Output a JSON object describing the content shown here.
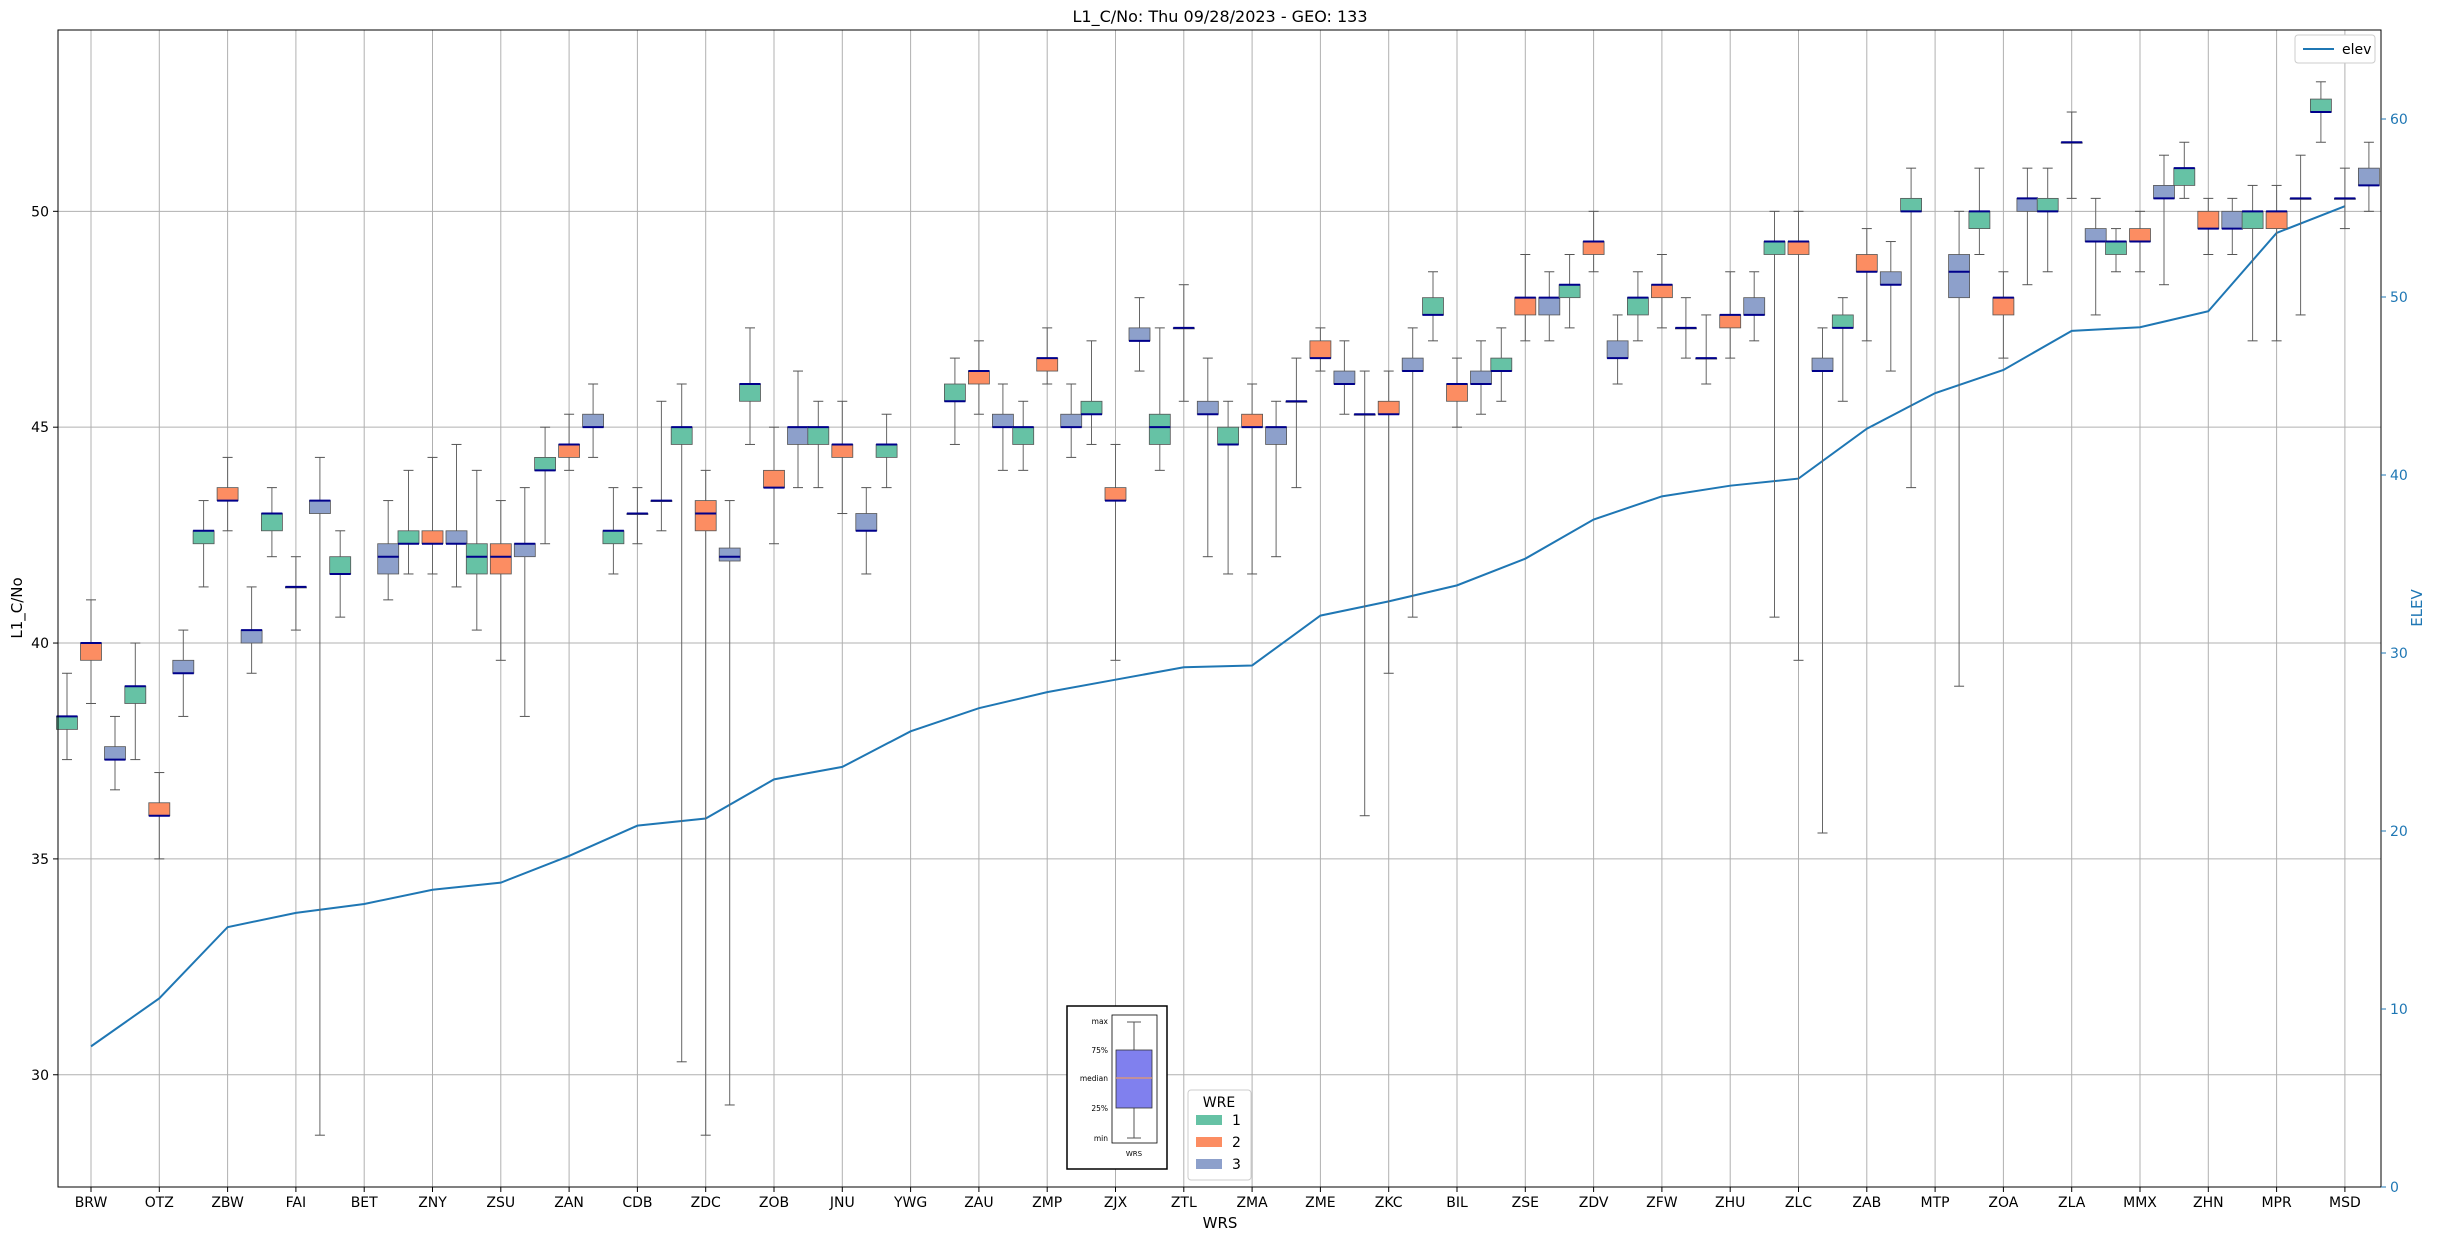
{
  "chart_data": {
    "type": "box",
    "title": "L1_C/No: Thu 09/28/2023 - GEO: 133",
    "xlabel": "WRS",
    "ylabel": "L1_C/No",
    "y2label": "ELEV",
    "ylim": [
      27.4,
      54.2
    ],
    "y2lim": [
      0,
      65
    ],
    "yticks": [
      30,
      35,
      40,
      45,
      50
    ],
    "y2ticks": [
      0,
      10,
      20,
      30,
      40,
      50,
      60
    ],
    "grid": true,
    "categories": [
      "BRW",
      "OTZ",
      "ZBW",
      "FAI",
      "BET",
      "ZNY",
      "ZSU",
      "ZAN",
      "CDB",
      "ZDC",
      "ZOB",
      "JNU",
      "YWG",
      "ZAU",
      "ZMP",
      "ZJX",
      "ZTL",
      "ZMA",
      "ZME",
      "ZKC",
      "BIL",
      "ZSE",
      "ZDV",
      "ZFW",
      "ZHU",
      "ZLC",
      "ZAB",
      "MTP",
      "ZOA",
      "ZLA",
      "MMX",
      "ZHN",
      "MPR",
      "MSD"
    ],
    "wre_colors": {
      "1": "#66c2a5",
      "2": "#fc8d62",
      "3": "#8da0cb"
    },
    "median_color": "#00008b",
    "elev_color": "#1f77b4",
    "legend_elev": "elev",
    "legend_wre_title": "WRE",
    "legend_wre": [
      "1",
      "2",
      "3"
    ],
    "key_labels": {
      "max": "max",
      "p75": "75%",
      "median": "median",
      "p25": "25%",
      "min": "min",
      "xlabel": "WRS"
    },
    "boxes": [
      {
        "cat": "BRW",
        "wre": 1,
        "min": 37.3,
        "q1": 38.0,
        "med": 38.3,
        "q3": 38.3,
        "max": 39.3
      },
      {
        "cat": "BRW",
        "wre": 2,
        "min": 38.6,
        "q1": 39.6,
        "med": 40.0,
        "q3": 40.0,
        "max": 41.0
      },
      {
        "cat": "BRW",
        "wre": 3,
        "min": 36.6,
        "q1": 37.3,
        "med": 37.3,
        "q3": 37.6,
        "max": 38.3
      },
      {
        "cat": "OTZ",
        "wre": 1,
        "min": 37.3,
        "q1": 38.6,
        "med": 39.0,
        "q3": 39.0,
        "max": 40.0
      },
      {
        "cat": "OTZ",
        "wre": 2,
        "min": 35.0,
        "q1": 36.0,
        "med": 36.0,
        "q3": 36.3,
        "max": 37.0
      },
      {
        "cat": "OTZ",
        "wre": 3,
        "min": 38.3,
        "q1": 39.3,
        "med": 39.3,
        "q3": 39.6,
        "max": 40.3
      },
      {
        "cat": "ZBW",
        "wre": 1,
        "min": 41.3,
        "q1": 42.3,
        "med": 42.6,
        "q3": 42.6,
        "max": 43.3
      },
      {
        "cat": "ZBW",
        "wre": 2,
        "min": 42.6,
        "q1": 43.3,
        "med": 43.3,
        "q3": 43.6,
        "max": 44.3
      },
      {
        "cat": "ZBW",
        "wre": 3,
        "min": 39.3,
        "q1": 40.0,
        "med": 40.3,
        "q3": 40.3,
        "max": 41.3
      },
      {
        "cat": "FAI",
        "wre": 1,
        "min": 42.0,
        "q1": 42.6,
        "med": 43.0,
        "q3": 43.0,
        "max": 43.6
      },
      {
        "cat": "FAI",
        "wre": 2,
        "min": 40.3,
        "q1": 41.3,
        "med": 41.3,
        "q3": 41.3,
        "max": 42.0
      },
      {
        "cat": "FAI",
        "wre": 3,
        "min": 28.6,
        "q1": 43.0,
        "med": 43.3,
        "q3": 43.3,
        "max": 44.3
      },
      {
        "cat": "BET",
        "wre": 1,
        "min": 40.6,
        "q1": 41.6,
        "med": 41.6,
        "q3": 42.0,
        "max": 42.6
      },
      {
        "cat": "BET",
        "wre": 3,
        "min": 41.0,
        "q1": 41.6,
        "med": 42.0,
        "q3": 42.3,
        "max": 43.3
      },
      {
        "cat": "ZNY",
        "wre": 1,
        "min": 41.6,
        "q1": 42.3,
        "med": 42.3,
        "q3": 42.6,
        "max": 44.0
      },
      {
        "cat": "ZNY",
        "wre": 2,
        "min": 41.6,
        "q1": 42.3,
        "med": 42.3,
        "q3": 42.6,
        "max": 44.3
      },
      {
        "cat": "ZNY",
        "wre": 3,
        "min": 41.3,
        "q1": 42.3,
        "med": 42.3,
        "q3": 42.6,
        "max": 44.6
      },
      {
        "cat": "ZSU",
        "wre": 1,
        "min": 40.3,
        "q1": 41.6,
        "med": 42.0,
        "q3": 42.3,
        "max": 44.0
      },
      {
        "cat": "ZSU",
        "wre": 2,
        "min": 39.6,
        "q1": 41.6,
        "med": 42.0,
        "q3": 42.3,
        "max": 43.3
      },
      {
        "cat": "ZSU",
        "wre": 3,
        "min": 38.3,
        "q1": 42.0,
        "med": 42.3,
        "q3": 42.3,
        "max": 43.6
      },
      {
        "cat": "ZAN",
        "wre": 1,
        "min": 42.3,
        "q1": 44.0,
        "med": 44.0,
        "q3": 44.3,
        "max": 45.0
      },
      {
        "cat": "ZAN",
        "wre": 2,
        "min": 44.0,
        "q1": 44.3,
        "med": 44.6,
        "q3": 44.6,
        "max": 45.3
      },
      {
        "cat": "ZAN",
        "wre": 3,
        "min": 44.3,
        "q1": 45.0,
        "med": 45.0,
        "q3": 45.3,
        "max": 46.0
      },
      {
        "cat": "CDB",
        "wre": 1,
        "min": 41.6,
        "q1": 42.3,
        "med": 42.6,
        "q3": 42.6,
        "max": 43.6
      },
      {
        "cat": "CDB",
        "wre": 2,
        "min": 42.3,
        "q1": 43.0,
        "med": 43.0,
        "q3": 43.0,
        "max": 43.6
      },
      {
        "cat": "CDB",
        "wre": 3,
        "min": 42.6,
        "q1": 43.3,
        "med": 43.3,
        "q3": 43.3,
        "max": 45.6
      },
      {
        "cat": "ZDC",
        "wre": 1,
        "min": 30.3,
        "q1": 44.6,
        "med": 45.0,
        "q3": 45.0,
        "max": 46.0
      },
      {
        "cat": "ZDC",
        "wre": 2,
        "min": 28.6,
        "q1": 42.6,
        "med": 43.0,
        "q3": 43.3,
        "max": 44.0
      },
      {
        "cat": "ZDC",
        "wre": 3,
        "min": 29.3,
        "q1": 41.9,
        "med": 42.0,
        "q3": 42.2,
        "max": 43.3
      },
      {
        "cat": "ZOB",
        "wre": 1,
        "min": 44.6,
        "q1": 45.6,
        "med": 46.0,
        "q3": 46.0,
        "max": 47.3
      },
      {
        "cat": "ZOB",
        "wre": 2,
        "min": 42.3,
        "q1": 43.6,
        "med": 43.6,
        "q3": 44.0,
        "max": 45.0
      },
      {
        "cat": "ZOB",
        "wre": 3,
        "min": 43.6,
        "q1": 44.6,
        "med": 45.0,
        "q3": 45.0,
        "max": 46.3
      },
      {
        "cat": "JNU",
        "wre": 1,
        "min": 43.6,
        "q1": 44.6,
        "med": 45.0,
        "q3": 45.0,
        "max": 45.6
      },
      {
        "cat": "JNU",
        "wre": 2,
        "min": 43.0,
        "q1": 44.3,
        "med": 44.6,
        "q3": 44.6,
        "max": 45.6
      },
      {
        "cat": "JNU",
        "wre": 3,
        "min": 41.6,
        "q1": 42.6,
        "med": 42.6,
        "q3": 43.0,
        "max": 43.6
      },
      {
        "cat": "YWG",
        "wre": 1,
        "min": 43.6,
        "q1": 44.3,
        "med": 44.6,
        "q3": 44.6,
        "max": 45.3
      },
      {
        "cat": "ZAU",
        "wre": 1,
        "min": 44.6,
        "q1": 45.6,
        "med": 45.6,
        "q3": 46.0,
        "max": 46.6
      },
      {
        "cat": "ZAU",
        "wre": 2,
        "min": 45.3,
        "q1": 46.0,
        "med": 46.3,
        "q3": 46.3,
        "max": 47.0
      },
      {
        "cat": "ZAU",
        "wre": 3,
        "min": 44.0,
        "q1": 45.0,
        "med": 45.0,
        "q3": 45.3,
        "max": 46.0
      },
      {
        "cat": "ZMP",
        "wre": 1,
        "min": 44.0,
        "q1": 44.6,
        "med": 45.0,
        "q3": 45.0,
        "max": 45.6
      },
      {
        "cat": "ZMP",
        "wre": 2,
        "min": 46.0,
        "q1": 46.3,
        "med": 46.6,
        "q3": 46.6,
        "max": 47.3
      },
      {
        "cat": "ZMP",
        "wre": 3,
        "min": 44.3,
        "q1": 45.0,
        "med": 45.0,
        "q3": 45.3,
        "max": 46.0
      },
      {
        "cat": "ZJX",
        "wre": 1,
        "min": 44.6,
        "q1": 45.3,
        "med": 45.3,
        "q3": 45.6,
        "max": 47.0
      },
      {
        "cat": "ZJX",
        "wre": 2,
        "min": 39.6,
        "q1": 43.3,
        "med": 43.3,
        "q3": 43.6,
        "max": 44.6
      },
      {
        "cat": "ZJX",
        "wre": 3,
        "min": 46.3,
        "q1": 47.0,
        "med": 47.0,
        "q3": 47.3,
        "max": 48.0
      },
      {
        "cat": "ZTL",
        "wre": 1,
        "min": 44.0,
        "q1": 44.6,
        "med": 45.0,
        "q3": 45.3,
        "max": 47.3
      },
      {
        "cat": "ZTL",
        "wre": 2,
        "min": 45.6,
        "q1": 47.3,
        "med": 47.3,
        "q3": 47.3,
        "max": 48.3
      },
      {
        "cat": "ZTL",
        "wre": 3,
        "min": 42.0,
        "q1": 45.3,
        "med": 45.3,
        "q3": 45.6,
        "max": 46.6
      },
      {
        "cat": "ZMA",
        "wre": 1,
        "min": 41.6,
        "q1": 44.6,
        "med": 44.6,
        "q3": 45.0,
        "max": 45.6
      },
      {
        "cat": "ZMA",
        "wre": 2,
        "min": 41.6,
        "q1": 45.0,
        "med": 45.0,
        "q3": 45.3,
        "max": 46.0
      },
      {
        "cat": "ZMA",
        "wre": 3,
        "min": 42.0,
        "q1": 44.6,
        "med": 45.0,
        "q3": 45.0,
        "max": 45.6
      },
      {
        "cat": "ZME",
        "wre": 1,
        "min": 43.6,
        "q1": 45.6,
        "med": 45.6,
        "q3": 45.6,
        "max": 46.6
      },
      {
        "cat": "ZME",
        "wre": 2,
        "min": 46.3,
        "q1": 46.6,
        "med": 46.6,
        "q3": 47.0,
        "max": 47.3
      },
      {
        "cat": "ZME",
        "wre": 3,
        "min": 45.3,
        "q1": 46.0,
        "med": 46.0,
        "q3": 46.3,
        "max": 47.0
      },
      {
        "cat": "ZKC",
        "wre": 1,
        "min": 36.0,
        "q1": 45.3,
        "med": 45.3,
        "q3": 45.3,
        "max": 46.3
      },
      {
        "cat": "ZKC",
        "wre": 2,
        "min": 39.3,
        "q1": 45.3,
        "med": 45.3,
        "q3": 45.6,
        "max": 46.3
      },
      {
        "cat": "ZKC",
        "wre": 3,
        "min": 40.6,
        "q1": 46.3,
        "med": 46.3,
        "q3": 46.6,
        "max": 47.3
      },
      {
        "cat": "BIL",
        "wre": 1,
        "min": 47.0,
        "q1": 47.6,
        "med": 47.6,
        "q3": 48.0,
        "max": 48.6
      },
      {
        "cat": "BIL",
        "wre": 2,
        "min": 45.0,
        "q1": 45.6,
        "med": 46.0,
        "q3": 46.0,
        "max": 46.6
      },
      {
        "cat": "BIL",
        "wre": 3,
        "min": 45.3,
        "q1": 46.0,
        "med": 46.0,
        "q3": 46.3,
        "max": 47.0
      },
      {
        "cat": "ZSE",
        "wre": 1,
        "min": 45.6,
        "q1": 46.3,
        "med": 46.3,
        "q3": 46.6,
        "max": 47.3
      },
      {
        "cat": "ZSE",
        "wre": 2,
        "min": 47.0,
        "q1": 47.6,
        "med": 48.0,
        "q3": 48.0,
        "max": 49.0
      },
      {
        "cat": "ZSE",
        "wre": 3,
        "min": 47.0,
        "q1": 47.6,
        "med": 48.0,
        "q3": 48.0,
        "max": 48.6
      },
      {
        "cat": "ZDV",
        "wre": 1,
        "min": 47.3,
        "q1": 48.0,
        "med": 48.3,
        "q3": 48.3,
        "max": 49.0
      },
      {
        "cat": "ZDV",
        "wre": 2,
        "min": 48.6,
        "q1": 49.0,
        "med": 49.3,
        "q3": 49.3,
        "max": 50.0
      },
      {
        "cat": "ZDV",
        "wre": 3,
        "min": 46.0,
        "q1": 46.6,
        "med": 46.6,
        "q3": 47.0,
        "max": 47.6
      },
      {
        "cat": "ZFW",
        "wre": 1,
        "min": 47.0,
        "q1": 47.6,
        "med": 48.0,
        "q3": 48.0,
        "max": 48.6
      },
      {
        "cat": "ZFW",
        "wre": 2,
        "min": 47.3,
        "q1": 48.0,
        "med": 48.3,
        "q3": 48.3,
        "max": 49.0
      },
      {
        "cat": "ZFW",
        "wre": 3,
        "min": 46.6,
        "q1": 47.3,
        "med": 47.3,
        "q3": 47.3,
        "max": 48.0
      },
      {
        "cat": "ZHU",
        "wre": 1,
        "min": 46.0,
        "q1": 46.6,
        "med": 46.6,
        "q3": 46.6,
        "max": 47.6
      },
      {
        "cat": "ZHU",
        "wre": 2,
        "min": 46.6,
        "q1": 47.3,
        "med": 47.6,
        "q3": 47.6,
        "max": 48.6
      },
      {
        "cat": "ZHU",
        "wre": 3,
        "min": 47.0,
        "q1": 47.6,
        "med": 47.6,
        "q3": 48.0,
        "max": 48.6
      },
      {
        "cat": "ZLC",
        "wre": 1,
        "min": 40.6,
        "q1": 49.0,
        "med": 49.3,
        "q3": 49.3,
        "max": 50.0
      },
      {
        "cat": "ZLC",
        "wre": 2,
        "min": 39.6,
        "q1": 49.0,
        "med": 49.3,
        "q3": 49.3,
        "max": 50.0
      },
      {
        "cat": "ZLC",
        "wre": 3,
        "min": 35.6,
        "q1": 46.3,
        "med": 46.3,
        "q3": 46.6,
        "max": 47.3
      },
      {
        "cat": "ZAB",
        "wre": 1,
        "min": 45.6,
        "q1": 47.3,
        "med": 47.3,
        "q3": 47.6,
        "max": 48.0
      },
      {
        "cat": "ZAB",
        "wre": 2,
        "min": 47.0,
        "q1": 48.6,
        "med": 48.6,
        "q3": 49.0,
        "max": 49.6
      },
      {
        "cat": "ZAB",
        "wre": 3,
        "min": 46.3,
        "q1": 48.3,
        "med": 48.3,
        "q3": 48.6,
        "max": 49.3
      },
      {
        "cat": "MTP",
        "wre": 1,
        "min": 43.6,
        "q1": 50.0,
        "med": 50.0,
        "q3": 50.3,
        "max": 51.0
      },
      {
        "cat": "MTP",
        "wre": 3,
        "min": 39.0,
        "q1": 48.0,
        "med": 48.6,
        "q3": 49.0,
        "max": 50.0
      },
      {
        "cat": "ZOA",
        "wre": 1,
        "min": 49.0,
        "q1": 49.6,
        "med": 50.0,
        "q3": 50.0,
        "max": 51.0
      },
      {
        "cat": "ZOA",
        "wre": 2,
        "min": 46.6,
        "q1": 47.6,
        "med": 48.0,
        "q3": 48.0,
        "max": 48.6
      },
      {
        "cat": "ZOA",
        "wre": 3,
        "min": 48.3,
        "q1": 50.0,
        "med": 50.3,
        "q3": 50.3,
        "max": 51.0
      },
      {
        "cat": "ZLA",
        "wre": 1,
        "min": 48.6,
        "q1": 50.0,
        "med": 50.0,
        "q3": 50.3,
        "max": 51.0
      },
      {
        "cat": "ZLA",
        "wre": 2,
        "min": 50.3,
        "q1": 51.6,
        "med": 51.6,
        "q3": 51.6,
        "max": 52.3
      },
      {
        "cat": "ZLA",
        "wre": 3,
        "min": 47.6,
        "q1": 49.3,
        "med": 49.3,
        "q3": 49.6,
        "max": 50.3
      },
      {
        "cat": "MMX",
        "wre": 1,
        "min": 48.6,
        "q1": 49.0,
        "med": 49.3,
        "q3": 49.3,
        "max": 49.6
      },
      {
        "cat": "MMX",
        "wre": 2,
        "min": 48.6,
        "q1": 49.3,
        "med": 49.3,
        "q3": 49.6,
        "max": 50.0
      },
      {
        "cat": "MMX",
        "wre": 3,
        "min": 48.3,
        "q1": 50.3,
        "med": 50.3,
        "q3": 50.6,
        "max": 51.3
      },
      {
        "cat": "ZHN",
        "wre": 1,
        "min": 50.3,
        "q1": 50.6,
        "med": 51.0,
        "q3": 51.0,
        "max": 51.6
      },
      {
        "cat": "ZHN",
        "wre": 2,
        "min": 49.0,
        "q1": 49.6,
        "med": 49.6,
        "q3": 50.0,
        "max": 50.3
      },
      {
        "cat": "ZHN",
        "wre": 3,
        "min": 49.0,
        "q1": 49.6,
        "med": 49.6,
        "q3": 50.0,
        "max": 50.3
      },
      {
        "cat": "MPR",
        "wre": 1,
        "min": 47.0,
        "q1": 49.6,
        "med": 50.0,
        "q3": 50.0,
        "max": 50.6
      },
      {
        "cat": "MPR",
        "wre": 2,
        "min": 47.0,
        "q1": 49.6,
        "med": 50.0,
        "q3": 50.0,
        "max": 50.6
      },
      {
        "cat": "MPR",
        "wre": 3,
        "min": 47.6,
        "q1": 50.3,
        "med": 50.3,
        "q3": 50.3,
        "max": 51.3
      },
      {
        "cat": "MSD",
        "wre": 1,
        "min": 51.6,
        "q1": 52.3,
        "med": 52.3,
        "q3": 52.6,
        "max": 53.0
      },
      {
        "cat": "MSD",
        "wre": 2,
        "min": 49.6,
        "q1": 50.3,
        "med": 50.3,
        "q3": 50.3,
        "max": 51.0
      },
      {
        "cat": "MSD",
        "wre": 3,
        "min": 50.0,
        "q1": 50.6,
        "med": 50.6,
        "q3": 51.0,
        "max": 51.6
      }
    ],
    "elev": [
      7.9,
      10.6,
      14.6,
      15.4,
      15.9,
      16.7,
      17.1,
      18.6,
      20.3,
      20.7,
      22.9,
      23.6,
      25.6,
      26.9,
      27.8,
      28.5,
      29.2,
      29.3,
      32.1,
      32.9,
      33.8,
      35.3,
      37.5,
      38.8,
      39.4,
      39.8,
      42.6,
      44.6,
      45.9,
      48.1,
      48.3,
      49.2,
      53.6,
      55.1
    ]
  }
}
